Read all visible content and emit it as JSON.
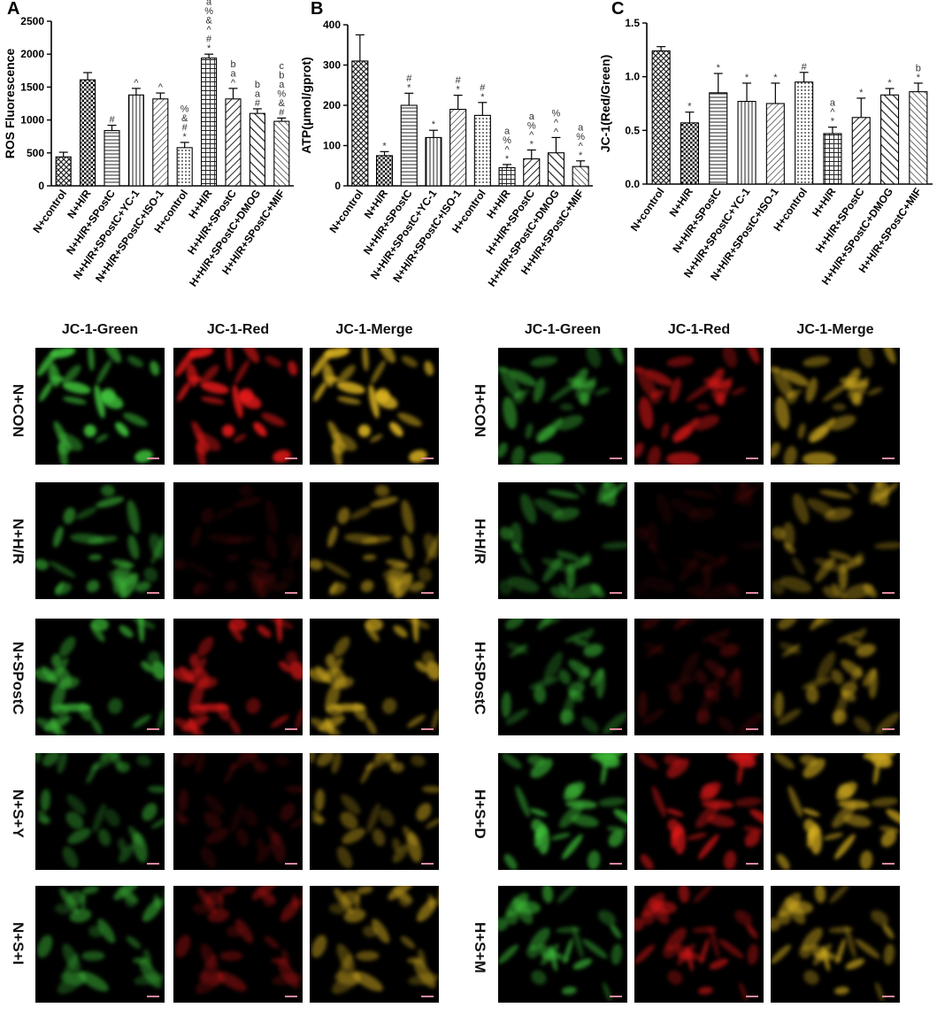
{
  "panels": [
    {
      "letter": "A",
      "ylabel": "ROS Fluorescence",
      "ylim": [
        0,
        2500
      ],
      "yticks": [
        0,
        500,
        1000,
        1500,
        2000,
        2500
      ]
    },
    {
      "letter": "B",
      "ylabel": "ATP(μmol/gprot)",
      "ylim": [
        0,
        400
      ],
      "yticks": [
        0,
        100,
        200,
        300,
        400
      ]
    },
    {
      "letter": "C",
      "ylabel": "JC-1(Red/Green)",
      "ylim": [
        0,
        1.5
      ],
      "yticks": [
        "0.0",
        "0.5",
        "1.0",
        "1.5"
      ]
    }
  ],
  "chart_data": [
    {
      "type": "bar",
      "categories": [
        "N+control",
        "N+H/R",
        "N+H/R+SPostC",
        "N+H/R+SPostC+YC-1",
        "N+H/R+SPostC+ISO-1",
        "H+control",
        "H+H/R",
        "H+H/R+SPostC",
        "H+H/R+SPostC+DMOG",
        "H+H/R+SPostC+MIF"
      ],
      "values": [
        440,
        1610,
        840,
        1380,
        1320,
        580,
        1940,
        1320,
        1100,
        980
      ],
      "errors": [
        70,
        110,
        80,
        100,
        90,
        80,
        60,
        160,
        70,
        50
      ],
      "annotations": [
        [],
        [],
        [
          "#"
        ],
        [
          "^"
        ],
        [
          "^"
        ],
        [
          "*",
          "#",
          "&",
          "%"
        ],
        [
          "*",
          "#",
          "^",
          "&",
          "%",
          "a"
        ],
        [
          "^",
          "a",
          "b"
        ],
        [
          "#",
          "a",
          "b"
        ],
        [
          "#",
          "&",
          "%",
          "a",
          "b",
          "c"
        ]
      ],
      "ylabel": "ROS Fluorescence",
      "ylim": [
        0,
        2500
      ]
    },
    {
      "type": "bar",
      "categories": [
        "N+control",
        "N+H/R",
        "N+H/R+SPostC",
        "N+H/R+SPostC+YC-1",
        "N+H/R+SPostC+ISO-1",
        "H+control",
        "H+H/R",
        "H+H/R+SPostC",
        "H+H/R+SPostC+DMOG",
        "H+H/R+SPostC+MIF"
      ],
      "values": [
        310,
        75,
        200,
        120,
        190,
        175,
        45,
        67,
        82,
        48
      ],
      "errors": [
        65,
        10,
        30,
        18,
        35,
        32,
        8,
        22,
        38,
        14
      ],
      "annotations": [
        [],
        [
          "*"
        ],
        [
          "*",
          "#"
        ],
        [
          "*"
        ],
        [
          "*",
          "#"
        ],
        [
          "*",
          "#"
        ],
        [
          "*",
          "^",
          "%",
          "a"
        ],
        [
          "*",
          "^",
          "%",
          "a"
        ],
        [
          "^",
          "^",
          "%"
        ],
        [
          "*",
          "^",
          "%",
          "a"
        ]
      ],
      "ylabel": "ATP(μmol/gprot)",
      "ylim": [
        0,
        400
      ]
    },
    {
      "type": "bar",
      "categories": [
        "N+control",
        "N+H/R",
        "N+H/R+SPostC",
        "N+H/R+SPostC+YC-1",
        "N+H/R+SPostC+ISO-1",
        "H+control",
        "H+H/R",
        "H+H/R+SPostC",
        "H+H/R+SPostC+DMOG",
        "H+H/R+SPostC+MIF"
      ],
      "values": [
        1.24,
        0.57,
        0.85,
        0.77,
        0.75,
        0.95,
        0.47,
        0.62,
        0.83,
        0.86
      ],
      "errors": [
        0.04,
        0.1,
        0.18,
        0.17,
        0.19,
        0.09,
        0.06,
        0.18,
        0.06,
        0.08
      ],
      "annotations": [
        [],
        [
          "*"
        ],
        [
          "*"
        ],
        [
          "*"
        ],
        [
          "*"
        ],
        [
          "#"
        ],
        [
          "*",
          "^",
          "a"
        ],
        [
          "*"
        ],
        [
          "*"
        ],
        [
          "*",
          "b"
        ]
      ],
      "ylabel": "JC-1(Red/Green)",
      "ylim": [
        0,
        1.5
      ]
    }
  ],
  "micrographs": {
    "column_headers": [
      "JC-1-Green",
      "JC-1-Red",
      "JC-1-Merge"
    ],
    "left_rows": [
      "N+CON",
      "N+H/R",
      "N+SPostC",
      "N+S+Y",
      "N+S+I"
    ],
    "right_rows": [
      "H+CON",
      "H+H/R",
      "H+SPostC",
      "H+S+D",
      "H+S+M"
    ],
    "brightness_left": [
      [
        0.85,
        0.85,
        0.85
      ],
      [
        0.55,
        0.12,
        0.5
      ],
      [
        0.7,
        0.7,
        0.7
      ],
      [
        0.45,
        0.18,
        0.45
      ],
      [
        0.5,
        0.35,
        0.5
      ]
    ],
    "brightness_right": [
      [
        0.55,
        0.6,
        0.6
      ],
      [
        0.45,
        0.1,
        0.45
      ],
      [
        0.45,
        0.18,
        0.45
      ],
      [
        0.7,
        0.65,
        0.7
      ],
      [
        0.6,
        0.55,
        0.6
      ]
    ],
    "colors": {
      "green": "#3fbf3a",
      "red": "#e01818",
      "merge": "#d7b020"
    }
  }
}
